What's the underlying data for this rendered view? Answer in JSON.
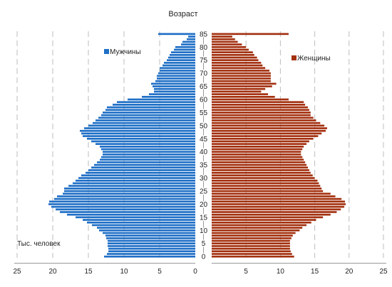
{
  "chart_data": {
    "type": "bar",
    "orientation": "horizontal",
    "subtype": "population-pyramid",
    "title": "Возраст",
    "unit_label": "Тыс. человек",
    "xlim_left": [
      0,
      25
    ],
    "xlim_right": [
      0,
      25
    ],
    "x_ticks": [
      25,
      20,
      15,
      10,
      5,
      0,
      5,
      10,
      15,
      20,
      25
    ],
    "age_ticks": [
      0,
      5,
      10,
      15,
      20,
      25,
      30,
      35,
      40,
      45,
      50,
      55,
      60,
      65,
      70,
      75,
      80,
      85
    ],
    "ages": [
      0,
      1,
      2,
      3,
      4,
      5,
      6,
      7,
      8,
      9,
      10,
      11,
      12,
      13,
      14,
      15,
      16,
      17,
      18,
      19,
      20,
      21,
      22,
      23,
      24,
      25,
      26,
      27,
      28,
      29,
      30,
      31,
      32,
      33,
      34,
      35,
      36,
      37,
      38,
      39,
      40,
      41,
      42,
      43,
      44,
      45,
      46,
      47,
      48,
      49,
      50,
      51,
      52,
      53,
      54,
      55,
      56,
      57,
      58,
      59,
      60,
      61,
      62,
      63,
      64,
      65,
      66,
      67,
      68,
      69,
      70,
      71,
      72,
      73,
      74,
      75,
      76,
      77,
      78,
      79,
      80,
      81,
      82,
      83,
      84,
      85
    ],
    "series": [
      {
        "name": "Мужчины",
        "side": "left",
        "color": "#1f6fc6",
        "values": [
          12.8,
          12.4,
          12.2,
          12.2,
          12.3,
          12.3,
          12.3,
          12.5,
          12.6,
          13.0,
          13.5,
          13.8,
          14.5,
          15.2,
          15.8,
          16.8,
          18.0,
          19.0,
          19.6,
          20.2,
          20.6,
          20.5,
          19.8,
          19.4,
          18.6,
          18.4,
          18.4,
          17.8,
          17.2,
          16.8,
          16.4,
          16.0,
          15.4,
          15.0,
          14.6,
          14.2,
          13.8,
          13.4,
          13.2,
          13.0,
          13.0,
          13.2,
          13.4,
          14.0,
          14.6,
          15.2,
          15.8,
          16.0,
          16.2,
          15.6,
          15.0,
          14.4,
          14.0,
          13.6,
          13.2,
          13.0,
          12.6,
          12.4,
          11.6,
          11.0,
          9.5,
          7.5,
          6.5,
          5.8,
          5.8,
          6.0,
          6.2,
          5.6,
          5.4,
          5.4,
          5.2,
          5.0,
          5.0,
          4.6,
          4.4,
          4.0,
          3.8,
          3.6,
          3.4,
          3.0,
          2.8,
          2.0,
          1.8,
          1.2,
          1.0,
          5.2
        ]
      },
      {
        "name": "Женщины",
        "side": "right",
        "color": "#a3300f",
        "values": [
          12.0,
          11.7,
          11.5,
          11.4,
          11.4,
          11.4,
          11.4,
          11.6,
          11.8,
          12.2,
          12.8,
          13.2,
          13.8,
          14.5,
          15.2,
          16.2,
          17.3,
          18.2,
          18.8,
          19.3,
          19.5,
          19.4,
          18.9,
          18.0,
          17.3,
          16.2,
          16.0,
          15.8,
          15.6,
          15.4,
          15.0,
          14.7,
          14.4,
          14.2,
          14.0,
          13.8,
          13.6,
          13.4,
          13.2,
          13.0,
          13.0,
          13.2,
          13.4,
          13.8,
          14.2,
          14.8,
          15.5,
          16.0,
          16.6,
          16.8,
          16.4,
          15.8,
          15.2,
          14.8,
          14.4,
          14.4,
          14.2,
          14.0,
          13.6,
          13.4,
          11.2,
          9.2,
          8.2,
          7.2,
          7.8,
          8.8,
          9.4,
          8.6,
          8.6,
          8.6,
          8.6,
          8.4,
          7.8,
          7.4,
          7.2,
          6.8,
          6.6,
          6.2,
          6.0,
          5.4,
          5.0,
          4.4,
          3.8,
          3.4,
          3.0,
          11.2
        ]
      }
    ],
    "grid": true
  }
}
